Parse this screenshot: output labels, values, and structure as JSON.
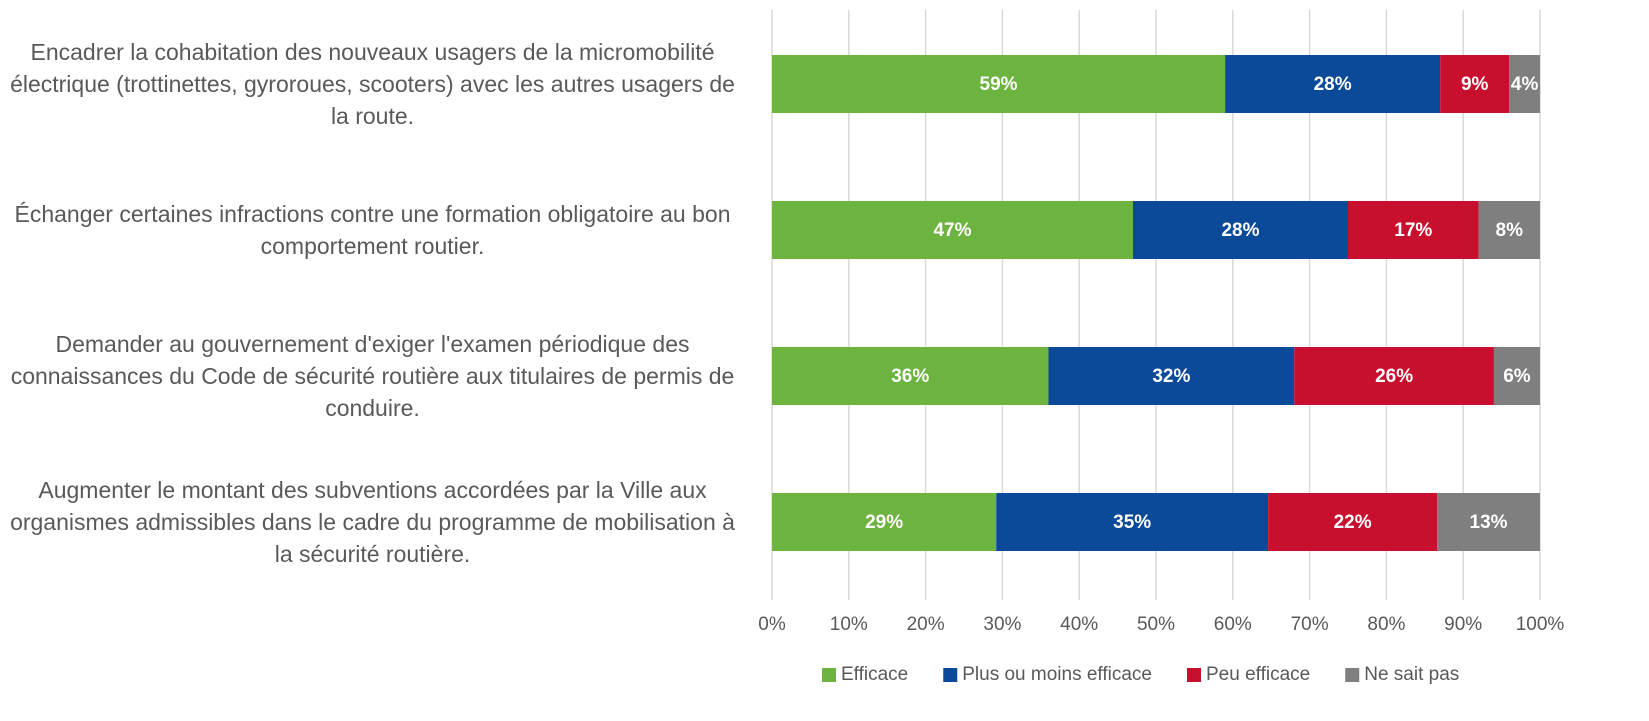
{
  "chart_data": {
    "type": "stacked-bar-horizontal",
    "categories": [
      "Encadrer la cohabitation des nouveaux usagers de la micromobilité électrique (trottinettes, gyroroues, scooters) avec les autres usagers de la route.",
      "Échanger certaines infractions contre une formation obligatoire au bon comportement routier.",
      "Demander au gouvernement d'exiger l'examen périodique des connaissances du Code de sécurité routière aux titulaires de permis de conduire.",
      "Augmenter le montant des subventions accordées par la Ville aux organismes admissibles dans le cadre du programme de mobilisation à la sécurité routière."
    ],
    "series": [
      {
        "name": "Efficace",
        "color": "#6db33f",
        "values": [
          59,
          47,
          36,
          29.2
        ],
        "value_labels": [
          "59%",
          "47%",
          "36%",
          "29%"
        ]
      },
      {
        "name": "Plus ou moins efficace",
        "color": "#0b4a99",
        "values": [
          28,
          28,
          32,
          35.4
        ],
        "value_labels": [
          "28%",
          "28%",
          "32%",
          "35%"
        ]
      },
      {
        "name": "Peu efficace",
        "color": "#c8102e",
        "values": [
          9,
          17,
          26,
          22
        ],
        "value_labels": [
          "9%",
          "17%",
          "26%",
          "22%"
        ]
      },
      {
        "name": "Ne sait pas",
        "color": "#7f7f7f",
        "values": [
          4,
          8,
          6,
          13.4
        ],
        "value_labels": [
          "4%",
          "8%",
          "6%",
          "13%"
        ]
      }
    ],
    "xlim": [
      0,
      100
    ],
    "xticks": [
      {
        "value": 0,
        "label": "0%"
      },
      {
        "value": 10,
        "label": "10%"
      },
      {
        "value": 20,
        "label": "20%"
      },
      {
        "value": 30,
        "label": "30%"
      },
      {
        "value": 40,
        "label": "40%"
      },
      {
        "value": 50,
        "label": "50%"
      },
      {
        "value": 60,
        "label": "60%"
      },
      {
        "value": 70,
        "label": "70%"
      },
      {
        "value": 80,
        "label": "80%"
      },
      {
        "value": 90,
        "label": "90%"
      },
      {
        "value": 100,
        "label": "100%"
      }
    ],
    "grid": true,
    "legend": "bottom"
  }
}
